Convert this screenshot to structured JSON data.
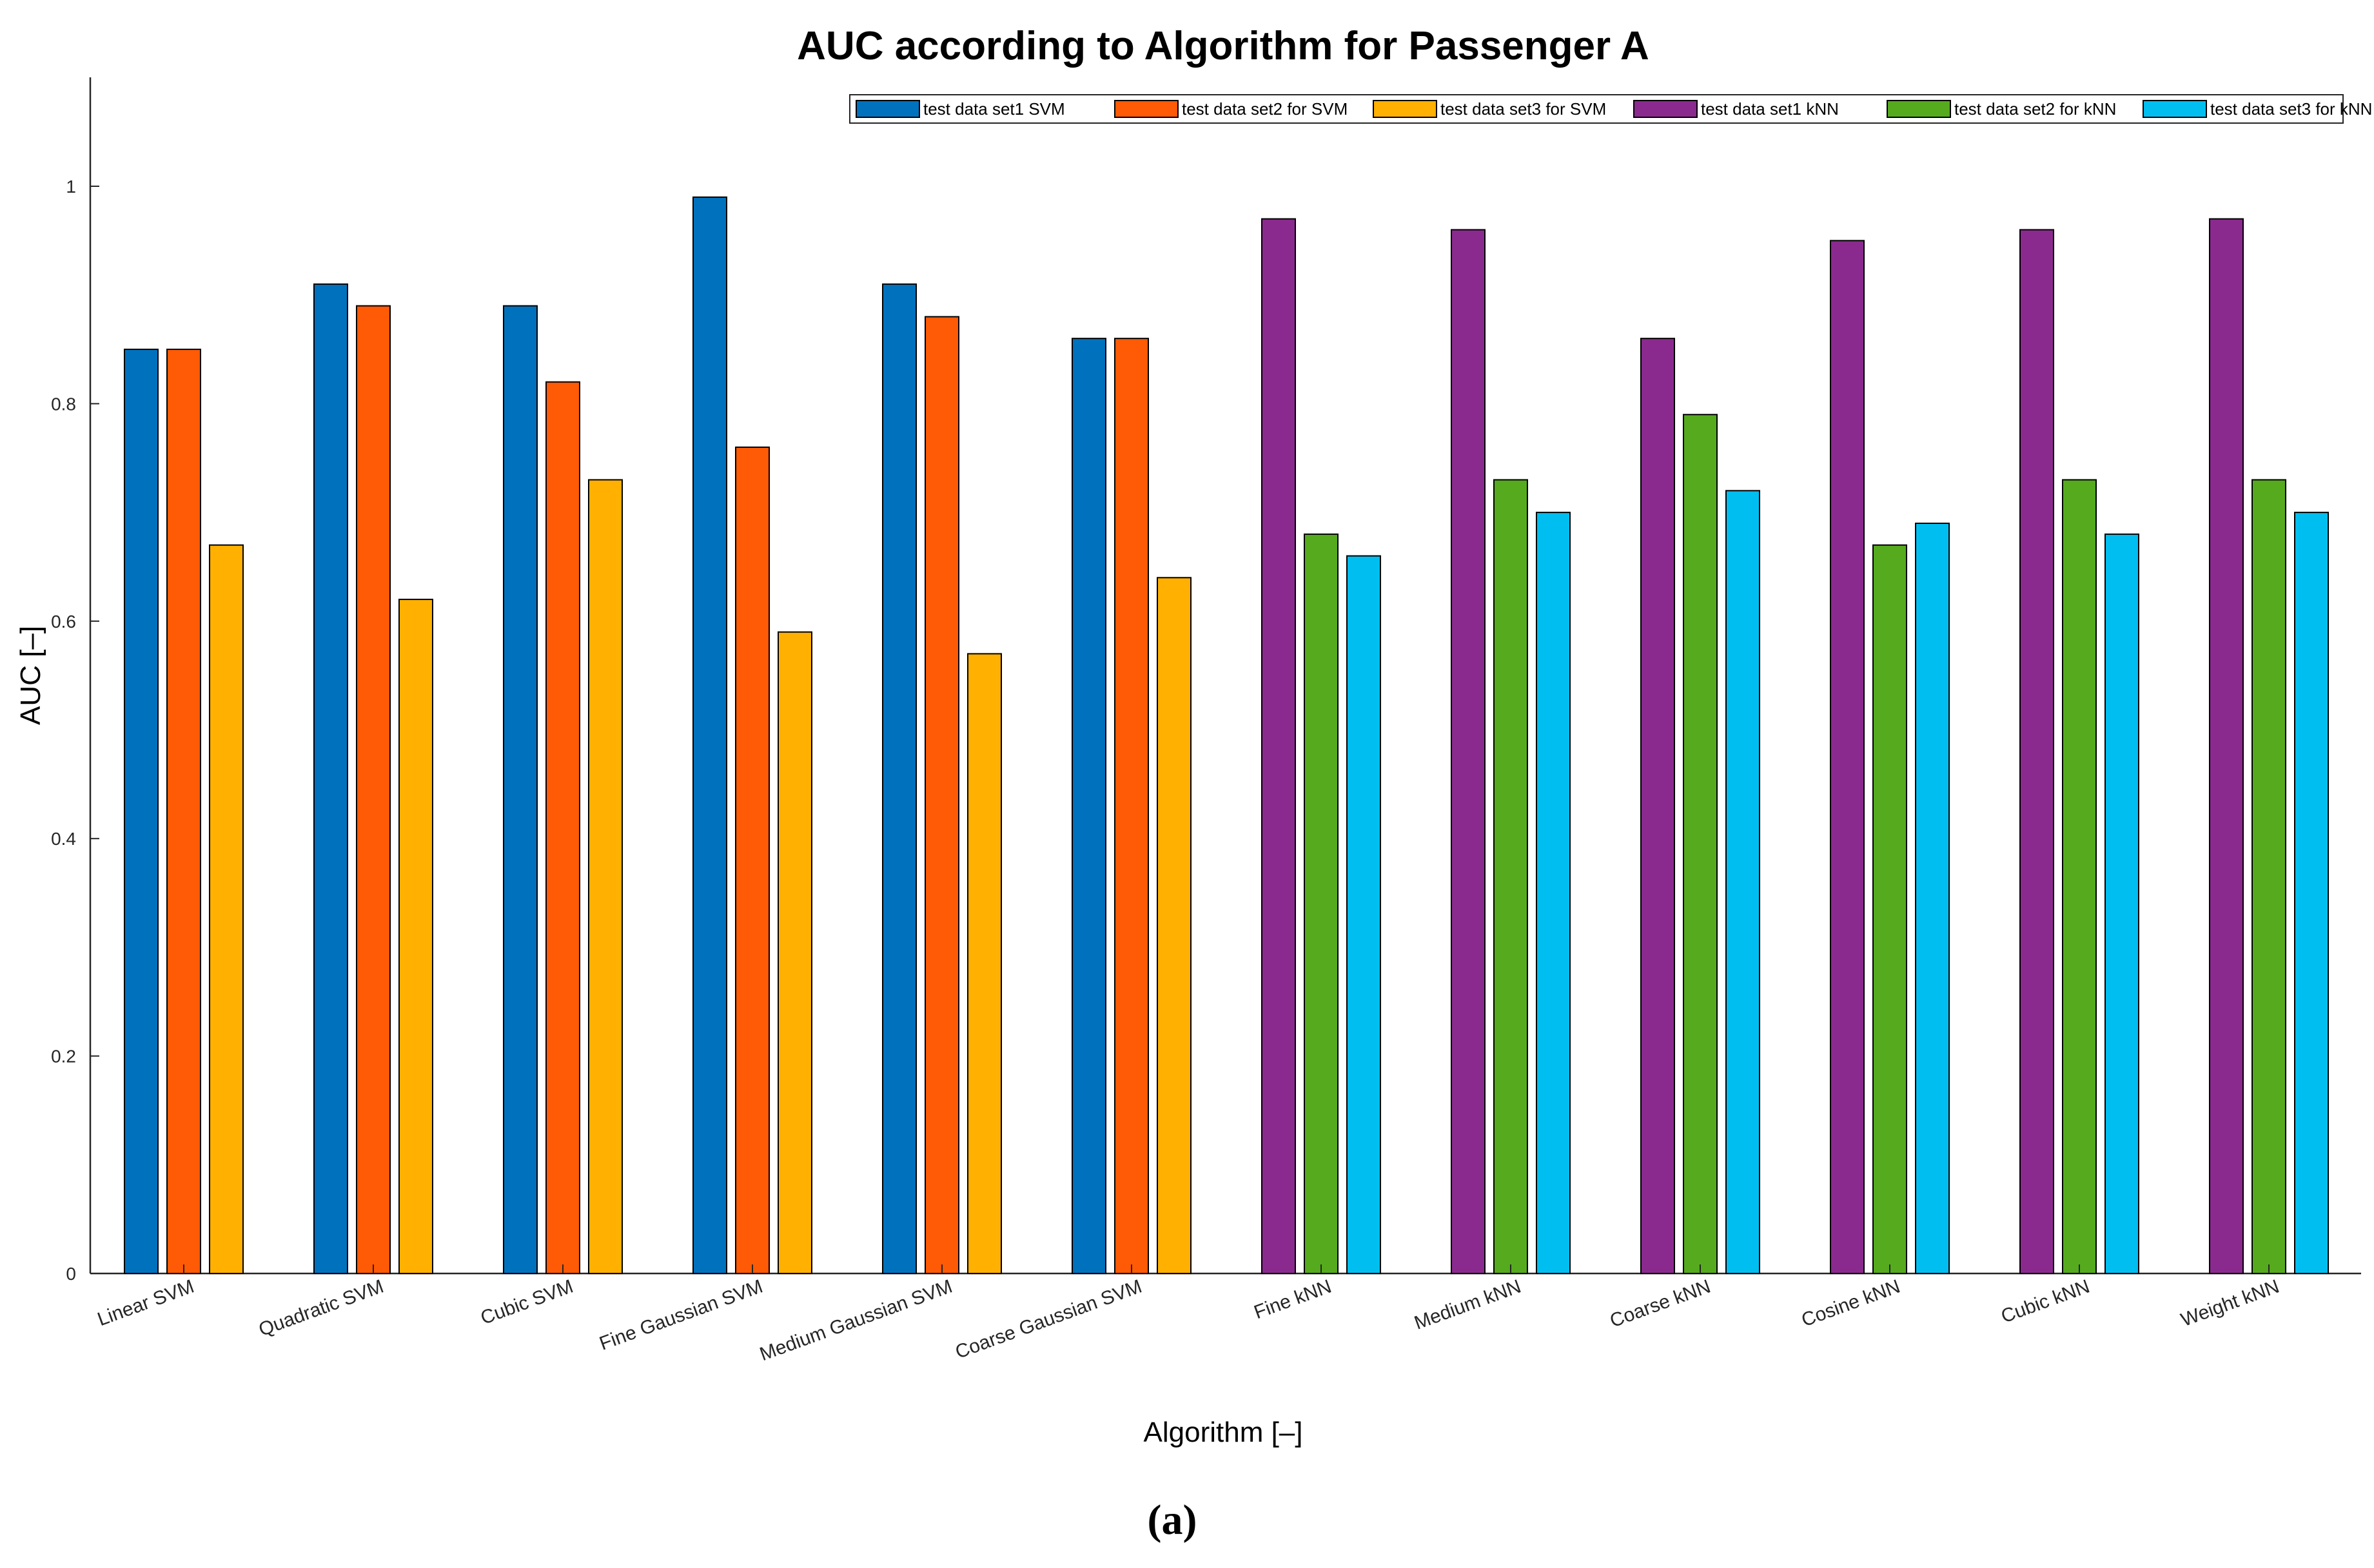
{
  "figure": {
    "caption": "(a)"
  },
  "chart_data": {
    "type": "bar",
    "title": "AUC according to Algorithm for Passenger A",
    "xlabel": "Algorithm [–]",
    "ylabel": "AUC [–]",
    "ylim": [
      0,
      1.1
    ],
    "yticks": [
      0,
      0.2,
      0.4,
      0.6,
      0.8,
      1
    ],
    "ytick_labels": [
      "0",
      "0.2",
      "0.4",
      "0.6",
      "0.8",
      "1"
    ],
    "grid": false,
    "legend_position": "top-right",
    "categories": [
      "Linear SVM",
      "Quadratic SVM",
      "Cubic SVM",
      "Fine Gaussian SVM",
      "Medium Gaussian SVM",
      "Coarse Gaussian SVM",
      "Fine kNN",
      "Medium kNN",
      "Coarse kNN",
      "Cosine kNN",
      "Cubic kNN",
      "Weight kNN"
    ],
    "series": [
      {
        "name": "test data set1 SVM",
        "color": "#0072BD",
        "values": [
          0.85,
          0.91,
          0.89,
          0.99,
          0.91,
          0.86,
          null,
          null,
          null,
          null,
          null,
          null
        ]
      },
      {
        "name": "test data set2 for SVM",
        "color": "#FF5A05",
        "values": [
          0.85,
          0.89,
          0.82,
          0.76,
          0.88,
          0.86,
          null,
          null,
          null,
          null,
          null,
          null
        ]
      },
      {
        "name": "test data set3 for SVM",
        "color": "#FFB000",
        "values": [
          0.67,
          0.62,
          0.73,
          0.59,
          0.57,
          0.64,
          null,
          null,
          null,
          null,
          null,
          null
        ]
      },
      {
        "name": "test data set1 kNN",
        "color": "#8B2A8E",
        "values": [
          null,
          null,
          null,
          null,
          null,
          null,
          0.97,
          0.96,
          0.86,
          0.95,
          0.96,
          0.97
        ]
      },
      {
        "name": "test data set2 for kNN",
        "color": "#55AA1E",
        "values": [
          null,
          null,
          null,
          null,
          null,
          null,
          0.68,
          0.73,
          0.79,
          0.67,
          0.73,
          0.73
        ]
      },
      {
        "name": "test data set3 for kNN",
        "color": "#00BFF0",
        "values": [
          null,
          null,
          null,
          null,
          null,
          null,
          0.66,
          0.7,
          0.72,
          0.69,
          0.68,
          0.7
        ]
      }
    ]
  }
}
